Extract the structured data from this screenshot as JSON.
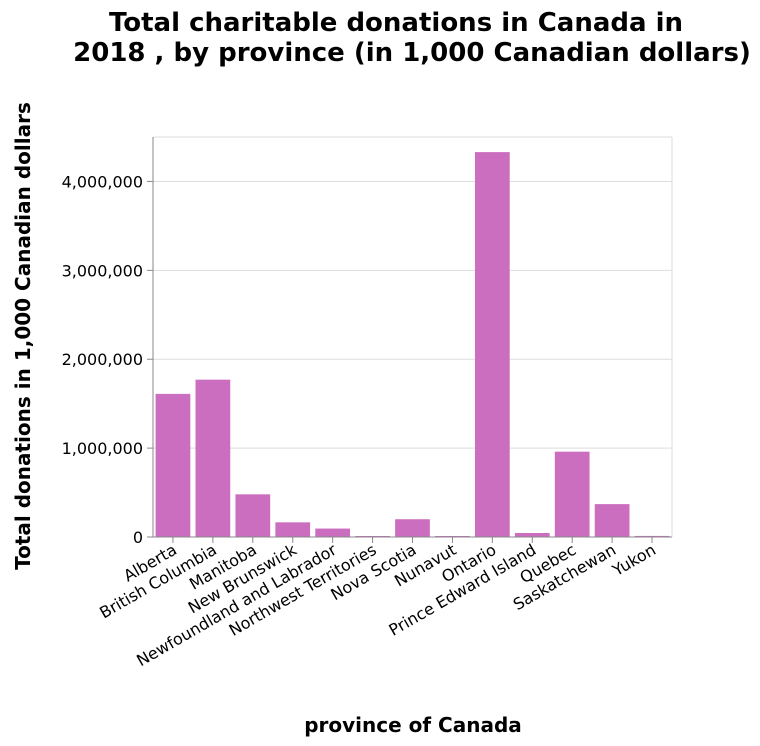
{
  "chart_data": {
    "type": "bar",
    "title": [
      "Total charitable donations in Canada in",
      "2018 , by province (in 1,000 Canadian dollars)"
    ],
    "xlabel": "province of Canada",
    "ylabel": "Total donations in 1,000 Canadian dollars",
    "categories": [
      "Alberta",
      "British Columbia",
      "Manitoba",
      "New Brunswick",
      "Newfoundland and Labrador",
      "Northwest Territories",
      "Nova Scotia",
      "Nunavut",
      "Ontario",
      "Prince Edward Island",
      "Quebec",
      "Saskatchewan",
      "Yukon"
    ],
    "values": [
      1610000,
      1770000,
      480000,
      165000,
      95000,
      10000,
      200000,
      3000,
      4330000,
      45000,
      960000,
      370000,
      12000
    ],
    "ylim": [
      0,
      4500000
    ],
    "yticks": [
      0,
      1000000,
      2000000,
      3000000,
      4000000
    ],
    "ytick_labels": [
      "0",
      "1,000,000",
      "2,000,000",
      "3,000,000",
      "4,000,000"
    ],
    "grid": true,
    "legend": "none",
    "bar_color": "#cc6ec0"
  }
}
